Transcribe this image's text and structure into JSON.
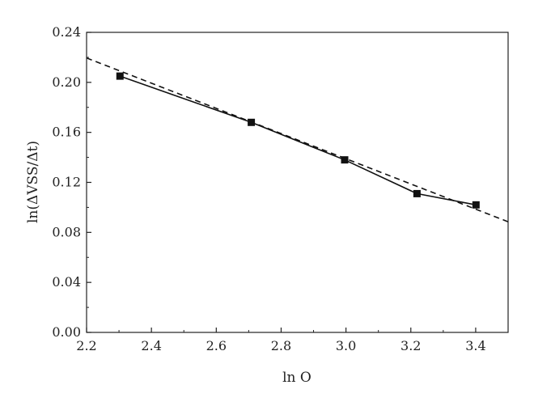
{
  "chart_data": {
    "type": "line",
    "xlabel": "ln O",
    "ylabel": "ln(ΔVSS/Δt)",
    "xlim": [
      2.2,
      3.5
    ],
    "ylim": [
      0.0,
      0.24
    ],
    "xticks": [
      "2.2",
      "2.4",
      "2.6",
      "2.8",
      "3.0",
      "3.2",
      "3.4"
    ],
    "yticks": [
      "0.00",
      "0.04",
      "0.08",
      "0.12",
      "0.16",
      "0.20",
      "0.24"
    ],
    "grid": false,
    "series": [
      {
        "style": "solid-line-square-markers",
        "color": "#111111",
        "x": [
          2.303,
          2.708,
          2.996,
          3.219,
          3.401
        ],
        "y": [
          0.205,
          0.168,
          0.138,
          0.111,
          0.102
        ]
      },
      {
        "style": "dashed-fit-line",
        "color": "#111111",
        "x": [
          2.2,
          3.5
        ],
        "y": [
          0.2195,
          0.0885
        ]
      }
    ]
  }
}
